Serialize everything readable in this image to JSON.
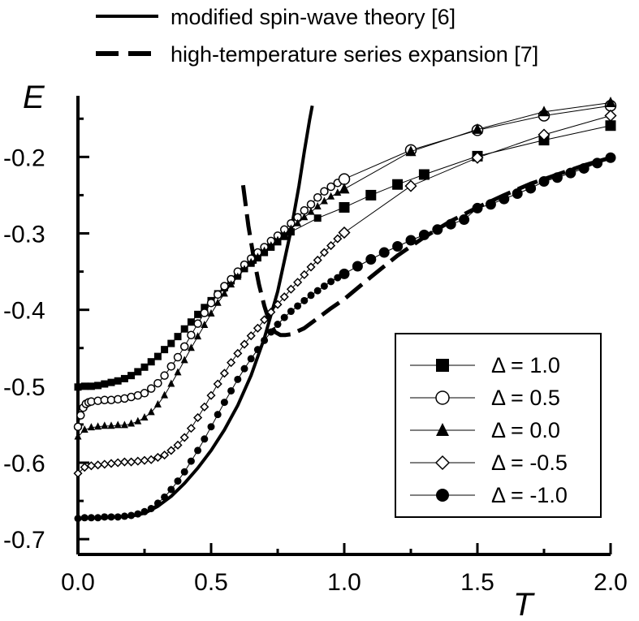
{
  "chart_data": {
    "type": "line",
    "xlabel": "T",
    "ylabel": "E",
    "xlim": [
      0.0,
      2.0
    ],
    "ylim": [
      -0.72,
      -0.12
    ],
    "x_ticks": [
      0.0,
      0.5,
      1.0,
      1.5,
      2.0
    ],
    "x_tick_labels": [
      "0.0",
      "0.5",
      "1.0",
      "1.5",
      "2.0"
    ],
    "y_ticks": [
      -0.7,
      -0.6,
      -0.5,
      -0.4,
      -0.3,
      -0.2
    ],
    "y_tick_labels": [
      "-0.7",
      "-0.6",
      "-0.5",
      "-0.4",
      "-0.3",
      "-0.2"
    ],
    "grid": false,
    "theory_curves": [
      {
        "name": "modified spin-wave theory  [6]",
        "style": "solid",
        "x": [
          0.0,
          0.1,
          0.2,
          0.25,
          0.3,
          0.35,
          0.4,
          0.45,
          0.5,
          0.55,
          0.6,
          0.65,
          0.7,
          0.75,
          0.8,
          0.83,
          0.85,
          0.87,
          0.88
        ],
        "y": [
          -0.673,
          -0.672,
          -0.67,
          -0.666,
          -0.657,
          -0.644,
          -0.627,
          -0.607,
          -0.584,
          -0.557,
          -0.525,
          -0.486,
          -0.437,
          -0.376,
          -0.296,
          -0.238,
          -0.193,
          -0.151,
          -0.133
        ]
      },
      {
        "name": "high-temperature series expansion  [7]",
        "style": "dashed",
        "x": [
          0.62,
          0.64,
          0.66,
          0.68,
          0.7,
          0.72,
          0.74,
          0.76,
          0.78,
          0.8,
          0.85,
          0.9,
          0.95,
          1.0,
          1.1,
          1.2,
          1.3,
          1.4,
          1.5,
          1.6,
          1.7,
          1.8,
          1.9,
          2.0
        ],
        "y": [
          -0.237,
          -0.29,
          -0.332,
          -0.367,
          -0.395,
          -0.417,
          -0.429,
          -0.433,
          -0.433,
          -0.432,
          -0.424,
          -0.411,
          -0.398,
          -0.386,
          -0.357,
          -0.329,
          -0.305,
          -0.284,
          -0.266,
          -0.25,
          -0.235,
          -0.223,
          -0.211,
          -0.201
        ]
      }
    ],
    "series": [
      {
        "name": "Δ  =  1.0",
        "marker": "filled-square",
        "x": [
          0.0,
          0.025,
          0.05,
          0.075,
          0.1,
          0.125,
          0.15,
          0.175,
          0.2,
          0.225,
          0.25,
          0.275,
          0.3,
          0.325,
          0.35,
          0.375,
          0.4,
          0.425,
          0.45,
          0.475,
          0.5,
          0.525,
          0.55,
          0.575,
          0.6,
          0.625,
          0.65,
          0.675,
          0.7,
          0.725,
          0.75,
          0.775,
          0.8,
          0.9,
          1.0,
          1.1,
          1.2,
          1.3,
          1.5,
          1.75,
          2.0
        ],
        "y": [
          -0.501,
          -0.5,
          -0.5,
          -0.499,
          -0.497,
          -0.495,
          -0.493,
          -0.49,
          -0.486,
          -0.481,
          -0.475,
          -0.468,
          -0.461,
          -0.452,
          -0.444,
          -0.435,
          -0.425,
          -0.416,
          -0.406,
          -0.397,
          -0.388,
          -0.379,
          -0.371,
          -0.362,
          -0.354,
          -0.346,
          -0.339,
          -0.332,
          -0.325,
          -0.318,
          -0.311,
          -0.304,
          -0.298,
          -0.28,
          -0.266,
          -0.25,
          -0.236,
          -0.223,
          -0.199,
          -0.178,
          -0.159
        ]
      },
      {
        "name": "Δ  =  0.5",
        "marker": "open-circle",
        "x": [
          0.0,
          0.01,
          0.02,
          0.03,
          0.04,
          0.05,
          0.075,
          0.1,
          0.125,
          0.15,
          0.175,
          0.2,
          0.225,
          0.25,
          0.275,
          0.3,
          0.325,
          0.35,
          0.375,
          0.4,
          0.425,
          0.45,
          0.475,
          0.5,
          0.525,
          0.55,
          0.575,
          0.6,
          0.625,
          0.65,
          0.675,
          0.7,
          0.725,
          0.75,
          0.775,
          0.8,
          0.825,
          0.85,
          0.875,
          0.9,
          0.925,
          0.95,
          0.975,
          1.0,
          1.25,
          1.5,
          1.75,
          2.0
        ],
        "y": [
          -0.553,
          -0.538,
          -0.528,
          -0.523,
          -0.521,
          -0.52,
          -0.519,
          -0.518,
          -0.518,
          -0.517,
          -0.516,
          -0.514,
          -0.512,
          -0.509,
          -0.503,
          -0.496,
          -0.486,
          -0.474,
          -0.462,
          -0.448,
          -0.433,
          -0.418,
          -0.404,
          -0.391,
          -0.38,
          -0.369,
          -0.36,
          -0.35,
          -0.341,
          -0.333,
          -0.325,
          -0.318,
          -0.31,
          -0.303,
          -0.295,
          -0.287,
          -0.279,
          -0.27,
          -0.262,
          -0.253,
          -0.245,
          -0.239,
          -0.234,
          -0.229,
          -0.191,
          -0.165,
          -0.146,
          -0.133
        ]
      },
      {
        "name": "Δ  =  0.0",
        "marker": "filled-triangle",
        "x": [
          0.0,
          0.025,
          0.05,
          0.075,
          0.1,
          0.125,
          0.15,
          0.175,
          0.2,
          0.225,
          0.25,
          0.275,
          0.3,
          0.325,
          0.35,
          0.375,
          0.4,
          0.425,
          0.45,
          0.475,
          0.5,
          0.525,
          0.55,
          0.575,
          0.6,
          0.625,
          0.65,
          0.675,
          0.7,
          0.725,
          0.75,
          0.775,
          0.8,
          0.825,
          0.85,
          0.875,
          0.9,
          0.925,
          0.95,
          0.975,
          1.0,
          1.25,
          1.5,
          1.75,
          2.0
        ],
        "y": [
          -0.566,
          -0.557,
          -0.554,
          -0.553,
          -0.552,
          -0.552,
          -0.551,
          -0.551,
          -0.549,
          -0.546,
          -0.541,
          -0.534,
          -0.524,
          -0.512,
          -0.497,
          -0.482,
          -0.466,
          -0.45,
          -0.435,
          -0.42,
          -0.405,
          -0.391,
          -0.379,
          -0.367,
          -0.357,
          -0.347,
          -0.338,
          -0.331,
          -0.323,
          -0.316,
          -0.309,
          -0.302,
          -0.294,
          -0.287,
          -0.279,
          -0.272,
          -0.265,
          -0.258,
          -0.252,
          -0.247,
          -0.242,
          -0.193,
          -0.164,
          -0.141,
          -0.129
        ]
      },
      {
        "name": "Δ  = -0.5",
        "marker": "open-diamond",
        "x": [
          0.0,
          0.025,
          0.05,
          0.075,
          0.1,
          0.125,
          0.15,
          0.175,
          0.2,
          0.225,
          0.25,
          0.275,
          0.3,
          0.325,
          0.35,
          0.375,
          0.4,
          0.425,
          0.45,
          0.475,
          0.5,
          0.525,
          0.55,
          0.575,
          0.6,
          0.625,
          0.65,
          0.675,
          0.7,
          0.725,
          0.75,
          0.775,
          0.8,
          0.825,
          0.85,
          0.875,
          0.9,
          0.925,
          0.95,
          0.975,
          1.0,
          1.25,
          1.5,
          1.75,
          2.0
        ],
        "y": [
          -0.614,
          -0.606,
          -0.604,
          -0.603,
          -0.602,
          -0.601,
          -0.6,
          -0.599,
          -0.599,
          -0.598,
          -0.597,
          -0.596,
          -0.593,
          -0.59,
          -0.584,
          -0.577,
          -0.567,
          -0.555,
          -0.541,
          -0.527,
          -0.512,
          -0.497,
          -0.483,
          -0.469,
          -0.457,
          -0.445,
          -0.434,
          -0.424,
          -0.413,
          -0.403,
          -0.393,
          -0.383,
          -0.373,
          -0.364,
          -0.354,
          -0.344,
          -0.335,
          -0.325,
          -0.316,
          -0.307,
          -0.299,
          -0.238,
          -0.201,
          -0.171,
          -0.146
        ]
      },
      {
        "name": "Δ  = -1.0",
        "marker": "filled-circle",
        "x": [
          0.0,
          0.025,
          0.05,
          0.075,
          0.1,
          0.125,
          0.15,
          0.175,
          0.2,
          0.225,
          0.25,
          0.275,
          0.3,
          0.325,
          0.35,
          0.375,
          0.4,
          0.425,
          0.45,
          0.475,
          0.5,
          0.525,
          0.55,
          0.575,
          0.6,
          0.625,
          0.65,
          0.675,
          0.7,
          0.725,
          0.75,
          0.775,
          0.8,
          0.825,
          0.85,
          0.875,
          0.9,
          0.925,
          0.95,
          0.975,
          1.0,
          1.05,
          1.1,
          1.15,
          1.2,
          1.25,
          1.3,
          1.35,
          1.4,
          1.45,
          1.5,
          1.55,
          1.6,
          1.65,
          1.7,
          1.75,
          1.8,
          1.85,
          1.9,
          1.95,
          2.0
        ],
        "y": [
          -0.673,
          -0.672,
          -0.672,
          -0.672,
          -0.671,
          -0.671,
          -0.671,
          -0.67,
          -0.669,
          -0.667,
          -0.664,
          -0.66,
          -0.653,
          -0.645,
          -0.635,
          -0.624,
          -0.612,
          -0.598,
          -0.584,
          -0.569,
          -0.553,
          -0.537,
          -0.521,
          -0.506,
          -0.491,
          -0.477,
          -0.464,
          -0.452,
          -0.44,
          -0.429,
          -0.419,
          -0.41,
          -0.402,
          -0.395,
          -0.388,
          -0.381,
          -0.375,
          -0.369,
          -0.363,
          -0.358,
          -0.353,
          -0.343,
          -0.334,
          -0.325,
          -0.317,
          -0.309,
          -0.302,
          -0.295,
          -0.288,
          -0.282,
          -0.267,
          -0.262,
          -0.255,
          -0.248,
          -0.241,
          -0.232,
          -0.227,
          -0.221,
          -0.215,
          -0.208,
          -0.201
        ]
      }
    ]
  }
}
